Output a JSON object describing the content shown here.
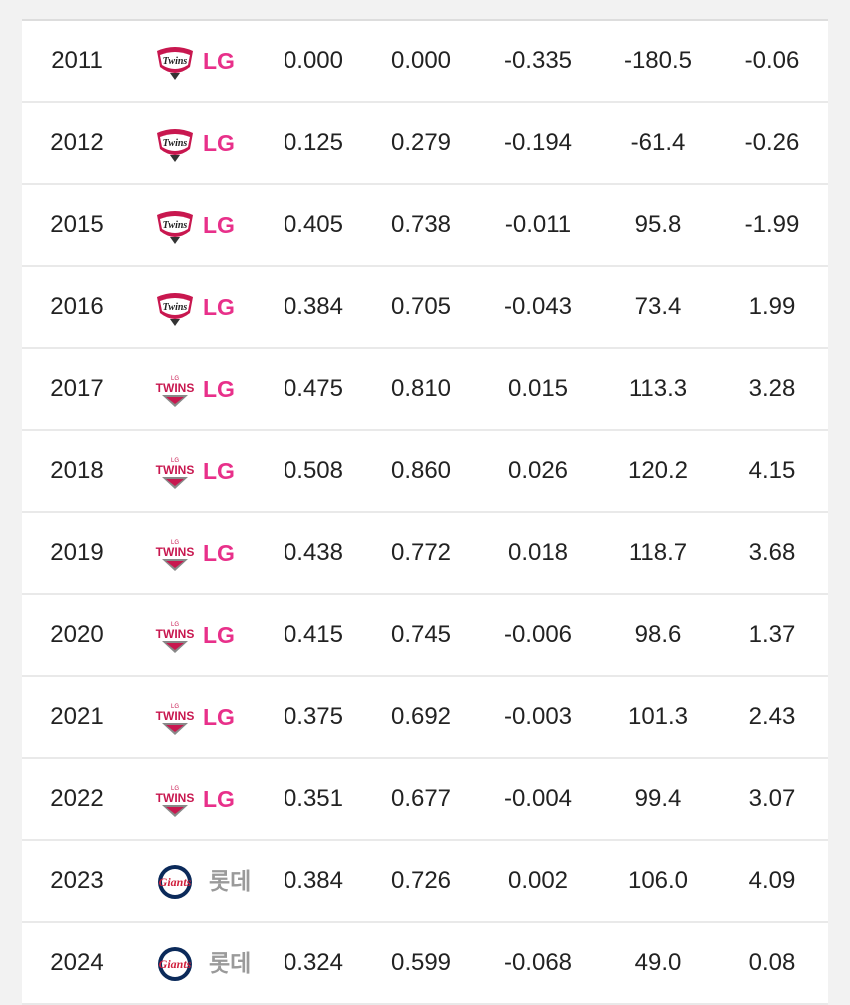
{
  "table": {
    "rows": [
      [
        "2011",
        "LG",
        "0.000",
        "0.000",
        "-0.335",
        "-180.5",
        "-0.06"
      ],
      [
        "2012",
        "LG",
        "0.125",
        "0.279",
        "-0.194",
        "-61.4",
        "-0.26"
      ],
      [
        "2015",
        "LG",
        "0.405",
        "0.738",
        "-0.011",
        "95.8",
        "-1.99"
      ],
      [
        "2016",
        "LG",
        "0.384",
        "0.705",
        "-0.043",
        "73.4",
        "1.99"
      ],
      [
        "2017",
        "LG",
        "0.475",
        "0.810",
        "0.015",
        "113.3",
        "3.28"
      ],
      [
        "2018",
        "LG",
        "0.508",
        "0.860",
        "0.026",
        "120.2",
        "4.15"
      ],
      [
        "2019",
        "LG",
        "0.438",
        "0.772",
        "0.018",
        "118.7",
        "3.68"
      ],
      [
        "2020",
        "LG",
        "0.415",
        "0.745",
        "-0.006",
        "98.6",
        "1.37"
      ],
      [
        "2021",
        "LG",
        "0.375",
        "0.692",
        "-0.003",
        "101.3",
        "2.43"
      ],
      [
        "2022",
        "LG",
        "0.351",
        "0.677",
        "-0.004",
        "99.4",
        "3.07"
      ],
      [
        "2023",
        "롯데",
        "0.384",
        "0.726",
        "0.002",
        "106.0",
        "4.09"
      ],
      [
        "2024",
        "롯데",
        "0.324",
        "0.599",
        "-0.068",
        "49.0",
        "0.08"
      ]
    ]
  }
}
